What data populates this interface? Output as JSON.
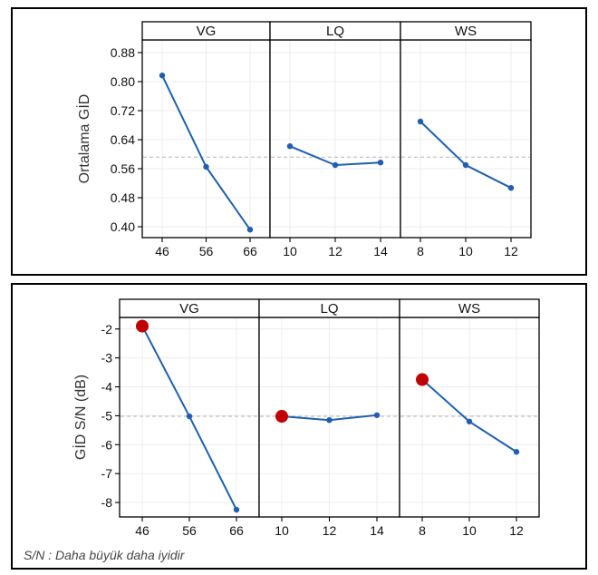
{
  "chart_data": [
    {
      "type": "line",
      "ylabel": "Ortalama GİD",
      "yticks": [
        0.4,
        0.48,
        0.56,
        0.64,
        0.72,
        0.8,
        0.88
      ],
      "ylim": [
        0.37,
        0.915
      ],
      "reference_line": 0.592,
      "grid": true,
      "panels": [
        {
          "name": "VG",
          "x": [
            "46",
            "56",
            "66"
          ],
          "values": [
            0.817,
            0.565,
            0.392
          ]
        },
        {
          "name": "LQ",
          "x": [
            "10",
            "12",
            "14"
          ],
          "values": [
            0.622,
            0.57,
            0.577
          ]
        },
        {
          "name": "WS",
          "x": [
            "8",
            "10",
            "12"
          ],
          "values": [
            0.69,
            0.57,
            0.507
          ]
        }
      ]
    },
    {
      "type": "line",
      "ylabel": "GİD S/N (dB)",
      "yticks": [
        -2,
        -3,
        -4,
        -5,
        -6,
        -7,
        -8
      ],
      "ylim": [
        -8.5,
        -1.6
      ],
      "reference_line": -5.02,
      "grid": true,
      "panels": [
        {
          "name": "VG",
          "x": [
            "46",
            "56",
            "66"
          ],
          "values": [
            -1.9,
            -5.02,
            -8.25
          ],
          "highlight_index": 0
        },
        {
          "name": "LQ",
          "x": [
            "10",
            "12",
            "14"
          ],
          "values": [
            -5.02,
            -5.15,
            -4.98
          ],
          "highlight_index": 0
        },
        {
          "name": "WS",
          "x": [
            "8",
            "10",
            "12"
          ],
          "values": [
            -3.75,
            -5.2,
            -6.25
          ],
          "highlight_index": 0
        }
      ],
      "note": "S/N : Daha büyük daha iyidir"
    }
  ],
  "colors": {
    "series": "#1f5fad",
    "highlight": "#c00000",
    "reference": "#b5b5b5"
  }
}
